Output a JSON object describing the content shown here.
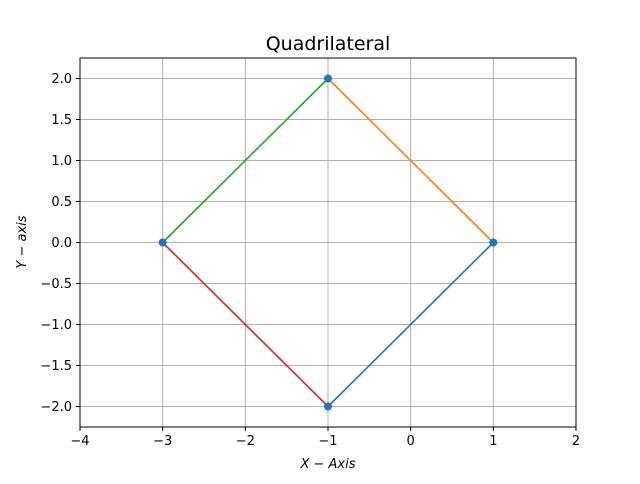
{
  "chart_data": {
    "type": "line",
    "title": "Quadrilateral",
    "xlabel": "X − Axis",
    "ylabel": "Y − axis",
    "xlim": [
      -4,
      2
    ],
    "ylim": [
      -2.25,
      2.25
    ],
    "grid": true,
    "x_ticks": [
      -4,
      -3,
      -2,
      -1,
      0,
      1,
      2
    ],
    "x_tick_labels": [
      "−4",
      "−3",
      "−2",
      "−1",
      "0",
      "1",
      "2"
    ],
    "y_ticks": [
      -2.0,
      -1.5,
      -1.0,
      -0.5,
      0.0,
      0.5,
      1.0,
      1.5,
      2.0
    ],
    "y_tick_labels": [
      "−2.0",
      "−1.5",
      "−1.0",
      "−0.5",
      "0.0",
      "0.5",
      "1.0",
      "1.5",
      "2.0"
    ],
    "vertices": [
      {
        "x": 1,
        "y": 0
      },
      {
        "x": -1,
        "y": 2
      },
      {
        "x": -3,
        "y": 0
      },
      {
        "x": -1,
        "y": -2
      }
    ],
    "series": [
      {
        "x": [
          -1,
          1
        ],
        "y": [
          -2,
          0
        ],
        "color": "#1f77b4"
      },
      {
        "x": [
          1,
          -1
        ],
        "y": [
          0,
          2
        ],
        "color": "#ff7f0e"
      },
      {
        "x": [
          -1,
          -3
        ],
        "y": [
          2,
          0
        ],
        "color": "#2ca02c"
      },
      {
        "x": [
          -3,
          -1
        ],
        "y": [
          0,
          -2
        ],
        "color": "#d62728"
      }
    ],
    "marker_color": "#1f77b4",
    "grid_color": "#b0b0b0"
  }
}
